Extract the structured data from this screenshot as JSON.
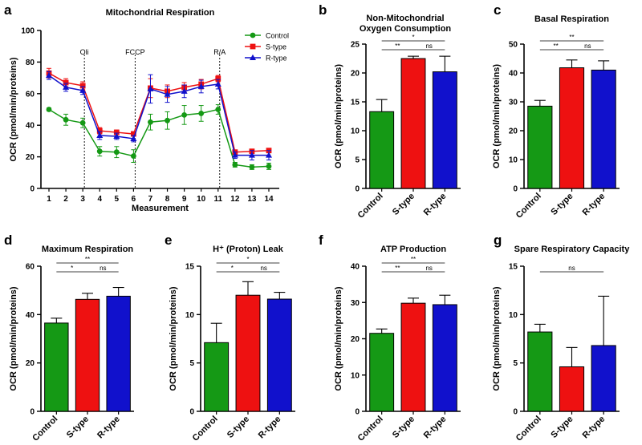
{
  "colors": {
    "control": "#159915",
    "stype": "#ee1111",
    "rtype": "#1111cc",
    "axis": "#000000"
  },
  "chart_data": [
    {
      "id": "a",
      "panel_label": "a",
      "type": "line",
      "title": "Mitochondrial Respiration",
      "xlabel": "Measurement",
      "ylabel": "OCR (pmol/min/proteins)",
      "ylim": [
        0,
        100
      ],
      "yticks": [
        "0",
        "20",
        "40",
        "60",
        "80",
        "100"
      ],
      "x": [
        "1",
        "2",
        "3",
        "4",
        "5",
        "6",
        "7",
        "8",
        "9",
        "10",
        "11",
        "12",
        "13",
        "14"
      ],
      "vlines": [
        {
          "label": "Oli",
          "after": 3
        },
        {
          "label": "FCCP",
          "after": 6
        },
        {
          "label": "R/A",
          "after": 11
        }
      ],
      "legend_position": "top-right",
      "series": [
        {
          "name": "Control",
          "marker": "circle",
          "color": "#159915",
          "values": [
            50,
            43.5,
            41.5,
            23.5,
            23,
            20.5,
            42,
            43,
            46.5,
            47.5,
            50,
            15,
            13.5,
            14
          ],
          "errors": [
            1,
            3.5,
            3,
            3,
            3.5,
            4,
            5,
            5.5,
            6,
            5,
            3,
            1.5,
            1.5,
            2
          ]
        },
        {
          "name": "S-type",
          "marker": "square",
          "color": "#ee1111",
          "values": [
            73,
            67,
            65,
            36.5,
            35.5,
            34.5,
            63.5,
            61.5,
            64,
            66,
            69.5,
            23,
            23.5,
            24
          ],
          "errors": [
            3,
            2.5,
            2.5,
            2,
            1.5,
            1.5,
            6,
            4,
            3,
            3,
            2,
            1,
            1,
            1
          ]
        },
        {
          "name": "R-type",
          "marker": "triangle",
          "color": "#1111cc",
          "values": [
            71.5,
            64,
            62,
            33.5,
            33,
            31.5,
            63,
            59.5,
            61.5,
            64.5,
            66,
            21,
            21,
            21
          ],
          "errors": [
            2.5,
            2.5,
            2.5,
            2.5,
            2,
            2,
            9,
            5,
            4,
            4,
            3,
            2,
            3,
            3
          ]
        }
      ]
    },
    {
      "id": "b",
      "panel_label": "b",
      "type": "bar",
      "title": [
        "Non-Mitochondrial",
        "Oxygen Consumption"
      ],
      "ylabel": "OCR (pmol/min/proteins)",
      "ylim": [
        0,
        25
      ],
      "yticks": [
        "0",
        "5",
        "10",
        "15",
        "20",
        "25"
      ],
      "categories": [
        "Control",
        "S-type",
        "R-type"
      ],
      "values": [
        13.3,
        22.5,
        20.2
      ],
      "errors": [
        2.1,
        0.4,
        2.7
      ],
      "significance": [
        {
          "pair": [
            0,
            2
          ],
          "label": "*",
          "level": 2
        },
        {
          "pair": [
            0,
            1
          ],
          "label": "**",
          "level": 1
        },
        {
          "pair": [
            1,
            2
          ],
          "label": "ns",
          "level": 1
        }
      ]
    },
    {
      "id": "c",
      "panel_label": "c",
      "type": "bar",
      "title": "Basal Respiration",
      "ylabel": "OCR (pmol/min/proteins)",
      "ylim": [
        0,
        50
      ],
      "yticks": [
        "0",
        "10",
        "20",
        "30",
        "40",
        "50"
      ],
      "categories": [
        "Control",
        "S-type",
        "R-type"
      ],
      "values": [
        28.5,
        41.8,
        41.0
      ],
      "errors": [
        2.0,
        2.7,
        3.2
      ],
      "significance": [
        {
          "pair": [
            0,
            2
          ],
          "label": "**",
          "level": 2
        },
        {
          "pair": [
            0,
            1
          ],
          "label": "**",
          "level": 1
        },
        {
          "pair": [
            1,
            2
          ],
          "label": "ns",
          "level": 1
        }
      ]
    },
    {
      "id": "d",
      "panel_label": "d",
      "type": "bar",
      "title": "Maximum Respiration",
      "ylabel": "OCR (pmol/min/proteins)",
      "ylim": [
        0,
        60
      ],
      "yticks": [
        "0",
        "20",
        "40",
        "60"
      ],
      "categories": [
        "Control",
        "S-type",
        "R-type"
      ],
      "values": [
        36.5,
        46.3,
        47.6
      ],
      "errors": [
        2.0,
        2.5,
        3.6
      ],
      "significance": [
        {
          "pair": [
            0,
            2
          ],
          "label": "**",
          "level": 2
        },
        {
          "pair": [
            0,
            1
          ],
          "label": "*",
          "level": 1
        },
        {
          "pair": [
            1,
            2
          ],
          "label": "ns",
          "level": 1
        }
      ]
    },
    {
      "id": "e",
      "panel_label": "e",
      "type": "bar",
      "title": "H⁺ (Proton) Leak",
      "ylabel": "OCR (pmol/min/proteins)",
      "ylim": [
        0,
        15
      ],
      "yticks": [
        "0",
        "5",
        "10",
        "15"
      ],
      "categories": [
        "Control",
        "S-type",
        "R-type"
      ],
      "values": [
        7.1,
        12.0,
        11.6
      ],
      "errors": [
        2.0,
        1.4,
        0.7
      ],
      "significance": [
        {
          "pair": [
            0,
            2
          ],
          "label": "*",
          "level": 2
        },
        {
          "pair": [
            0,
            1
          ],
          "label": "*",
          "level": 1
        },
        {
          "pair": [
            1,
            2
          ],
          "label": "ns",
          "level": 1
        }
      ]
    },
    {
      "id": "f",
      "panel_label": "f",
      "type": "bar",
      "title": "ATP Production",
      "ylabel": "OCR (pmol/min/proteins)",
      "ylim": [
        0,
        40
      ],
      "yticks": [
        "0",
        "10",
        "20",
        "30",
        "40"
      ],
      "categories": [
        "Control",
        "S-type",
        "R-type"
      ],
      "values": [
        21.5,
        29.8,
        29.4
      ],
      "errors": [
        1.2,
        1.4,
        2.6
      ],
      "significance": [
        {
          "pair": [
            0,
            2
          ],
          "label": "**",
          "level": 2
        },
        {
          "pair": [
            0,
            1
          ],
          "label": "**",
          "level": 1
        },
        {
          "pair": [
            1,
            2
          ],
          "label": "ns",
          "level": 1
        }
      ]
    },
    {
      "id": "g",
      "panel_label": "g",
      "type": "bar",
      "title": "Spare Respiratory Capacity",
      "ylabel": "OCR (pmol/min/proteins)",
      "ylim": [
        0,
        15
      ],
      "yticks": [
        "0",
        "5",
        "10",
        "15"
      ],
      "categories": [
        "Control",
        "S-type",
        "R-type"
      ],
      "values": [
        8.2,
        4.6,
        6.8
      ],
      "errors": [
        0.8,
        2.0,
        5.1
      ],
      "significance": [
        {
          "pair": [
            0,
            2
          ],
          "label": "ns",
          "level": 1
        }
      ]
    }
  ]
}
